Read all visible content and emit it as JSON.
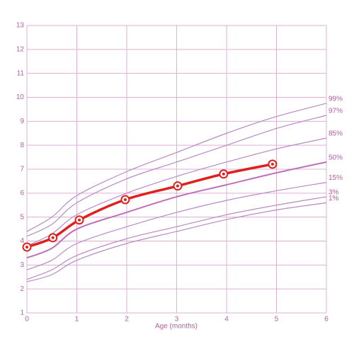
{
  "chart_data": {
    "type": "line",
    "x_label": "Age (months)",
    "x": [
      0,
      0.5,
      1,
      2,
      3,
      4,
      5,
      6
    ],
    "series": [
      {
        "name": "99%",
        "color": "#b98ac4",
        "values": [
          4.4,
          5.0,
          5.9,
          6.9,
          7.7,
          8.5,
          9.2,
          9.75
        ]
      },
      {
        "name": "97%",
        "color": "#b98ac4",
        "values": [
          4.2,
          4.7,
          5.6,
          6.6,
          7.3,
          8.0,
          8.7,
          9.25
        ]
      },
      {
        "name": "85%",
        "color": "#b98ac4",
        "values": [
          3.8,
          4.3,
          5.1,
          6.0,
          6.7,
          7.3,
          7.85,
          8.3
        ]
      },
      {
        "name": "50%",
        "color": "#c070b8",
        "values": [
          3.3,
          3.7,
          4.5,
          5.2,
          5.85,
          6.35,
          6.85,
          7.3
        ]
      },
      {
        "name": "15%",
        "color": "#b98ac4",
        "values": [
          2.8,
          3.2,
          3.9,
          4.6,
          5.2,
          5.7,
          6.1,
          6.45
        ]
      },
      {
        "name": "3%",
        "color": "#b98ac4",
        "values": [
          2.4,
          2.8,
          3.4,
          4.1,
          4.6,
          5.1,
          5.5,
          5.85
        ]
      },
      {
        "name": "1%",
        "color": "#b98ac4",
        "values": [
          2.3,
          2.6,
          3.2,
          3.9,
          4.4,
          4.9,
          5.3,
          5.6
        ]
      }
    ],
    "measurements": {
      "color": "#e0201c",
      "x": [
        0,
        0.52,
        1.05,
        1.97,
        3.02,
        3.94,
        4.92
      ],
      "values": [
        3.75,
        4.14,
        4.88,
        5.73,
        6.3,
        6.8,
        7.21
      ]
    },
    "xlim": [
      0,
      6
    ],
    "xticks": [
      0,
      1,
      2,
      3,
      4,
      5,
      6
    ],
    "ylim": [
      1,
      13
    ],
    "yticks": [
      1,
      2,
      3,
      4,
      5,
      6,
      7,
      8,
      9,
      10,
      11,
      12,
      13
    ],
    "grid": true
  }
}
